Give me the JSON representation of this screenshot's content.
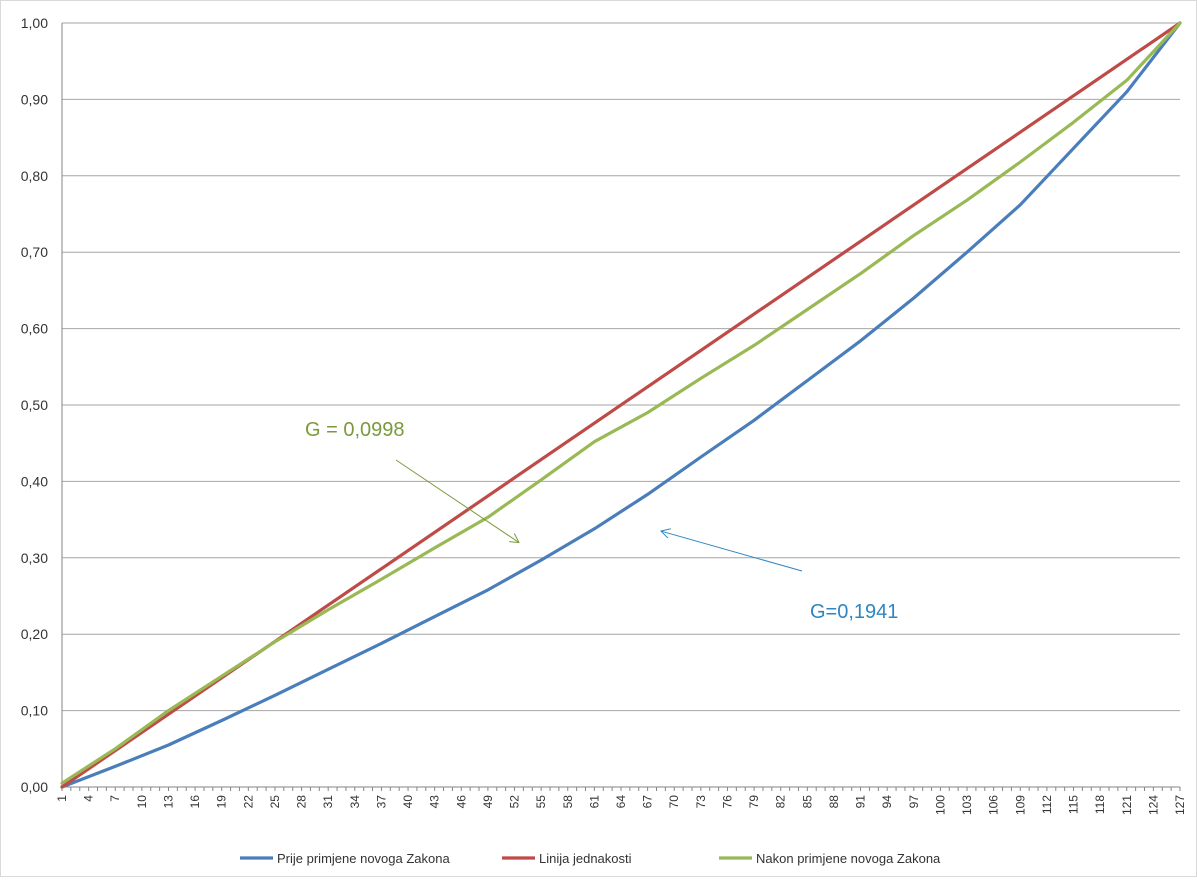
{
  "colors": {
    "prije": "#4a7ebb",
    "linija": "#be4b48",
    "nakon": "#98b954",
    "annot_g1": "#7a9a3c",
    "annot_g2": "#2e86c1",
    "grid": "#a6a6a6",
    "axis": "#868686"
  },
  "chart_data": {
    "type": "line",
    "title": "",
    "xlabel": "",
    "ylabel": "",
    "x": {
      "start": 1,
      "end": 127,
      "step": 1
    },
    "ylim": [
      0,
      1
    ],
    "yticks": [
      "0,00",
      "0,10",
      "0,20",
      "0,30",
      "0,40",
      "0,50",
      "0,60",
      "0,70",
      "0,80",
      "0,90",
      "1,00"
    ],
    "xticks": [
      "1",
      "4",
      "7",
      "10",
      "13",
      "16",
      "19",
      "22",
      "25",
      "28",
      "31",
      "34",
      "37",
      "40",
      "43",
      "46",
      "49",
      "52",
      "55",
      "58",
      "61",
      "64",
      "67",
      "70",
      "73",
      "76",
      "79",
      "82",
      "85",
      "88",
      "91",
      "94",
      "97",
      "100",
      "103",
      "106",
      "109",
      "112",
      "115",
      "118",
      "121",
      "124",
      "127"
    ],
    "grid": "horizontal",
    "legend_position": "bottom",
    "series": [
      {
        "name": "Prije primjene novoga Zakona",
        "x": [
          1,
          7,
          13,
          19,
          25,
          31,
          37,
          43,
          49,
          55,
          61,
          67,
          73,
          79,
          85,
          91,
          97,
          103,
          109,
          115,
          121,
          127
        ],
        "values": [
          0.0,
          0.027,
          0.055,
          0.087,
          0.12,
          0.154,
          0.188,
          0.223,
          0.258,
          0.297,
          0.338,
          0.383,
          0.432,
          0.48,
          0.532,
          0.584,
          0.64,
          0.7,
          0.762,
          0.836,
          0.91,
          1.0
        ]
      },
      {
        "name": "Linija jednakosti",
        "x": [
          1,
          127
        ],
        "values": [
          0.0,
          1.0
        ]
      },
      {
        "name": "Nakon primjene novoga Zakona",
        "x": [
          1,
          7,
          13,
          19,
          25,
          31,
          37,
          43,
          49,
          55,
          61,
          67,
          73,
          79,
          85,
          91,
          97,
          103,
          109,
          115,
          121,
          127
        ],
        "values": [
          0.005,
          0.05,
          0.1,
          0.145,
          0.19,
          0.232,
          0.272,
          0.313,
          0.353,
          0.402,
          0.452,
          0.49,
          0.535,
          0.578,
          0.625,
          0.672,
          0.722,
          0.768,
          0.818,
          0.87,
          0.925,
          1.0
        ]
      }
    ],
    "annotations": [
      {
        "text": "G = 0,0998",
        "arrow_to": {
          "x": 52.5,
          "y": 0.32
        }
      },
      {
        "text": "G=0,1941",
        "arrow_to": {
          "x": 68.5,
          "y": 0.335
        }
      }
    ]
  }
}
